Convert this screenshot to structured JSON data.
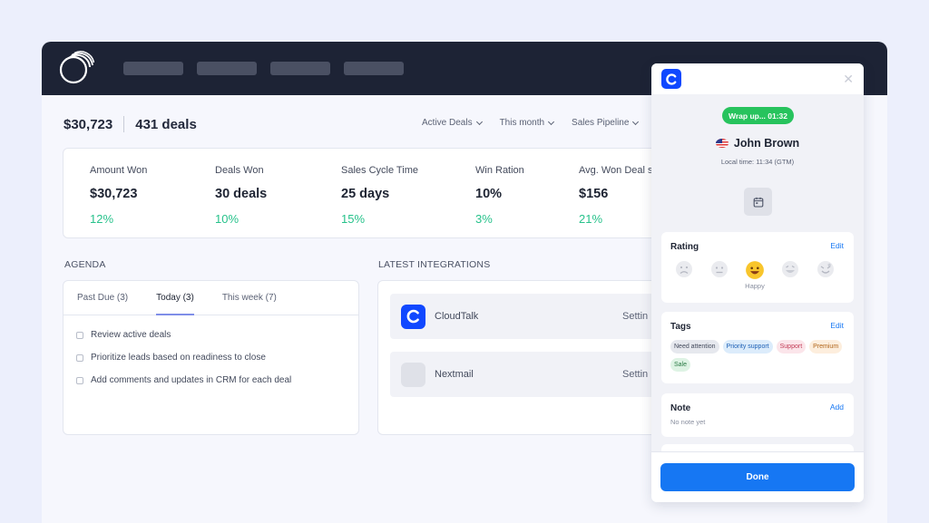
{
  "summary": {
    "amount": "$30,723",
    "deals": "431 deals"
  },
  "filters": [
    "Active Deals",
    "This month",
    "Sales Pipeline"
  ],
  "stats": [
    {
      "label": "Amount Won",
      "value": "$30,723",
      "change": "12%"
    },
    {
      "label": "Deals Won",
      "value": "30 deals",
      "change": "10%"
    },
    {
      "label": "Sales Cycle Time",
      "value": "25 days",
      "change": "15%"
    },
    {
      "label": "Win Ration",
      "value": "10%",
      "change": "3%"
    },
    {
      "label": "Avg. Won Deal s",
      "value": "$156",
      "change": "21%"
    }
  ],
  "agenda": {
    "title": "AGENDA",
    "tabs": [
      "Past Due (3)",
      "Today (3)",
      "This week (7)"
    ],
    "tasks": [
      "Review active deals",
      "Prioritize leads based on readiness to close",
      "Add comments and updates in CRM for each deal"
    ]
  },
  "integrations": {
    "title": "LATEST INTEGRATIONS",
    "items": [
      {
        "name": "CloudTalk",
        "action": "Settin"
      },
      {
        "name": "Nextmail",
        "action": "Settin"
      }
    ]
  },
  "call_panel": {
    "badge": "Wrap up... 01:32",
    "caller": "John Brown",
    "local_time": "Local time: 11:34 (GTM)",
    "rating": {
      "title": "Rating",
      "link": "Edit",
      "selected_label": "Happy"
    },
    "tags": {
      "title": "Tags",
      "link": "Edit",
      "items": [
        {
          "label": "Need attention",
          "bg": "#e6e8ee",
          "fg": "#434a5c"
        },
        {
          "label": "Priority support",
          "bg": "#dcecfb",
          "fg": "#1c5fb5"
        },
        {
          "label": "Support",
          "bg": "#fbe5ea",
          "fg": "#c23a55"
        },
        {
          "label": "Premium",
          "bg": "#fdeedd",
          "fg": "#b06418"
        },
        {
          "label": "Sale",
          "bg": "#def3e4",
          "fg": "#2a7a44"
        }
      ]
    },
    "note": {
      "title": "Note",
      "link": "Add",
      "empty": "No note yet"
    },
    "done_label": "Done"
  },
  "colors": {
    "positive": "#27c28b",
    "brand_blue": "#1048ff",
    "action_blue": "#1677f3",
    "topbar": "#1d2335"
  }
}
